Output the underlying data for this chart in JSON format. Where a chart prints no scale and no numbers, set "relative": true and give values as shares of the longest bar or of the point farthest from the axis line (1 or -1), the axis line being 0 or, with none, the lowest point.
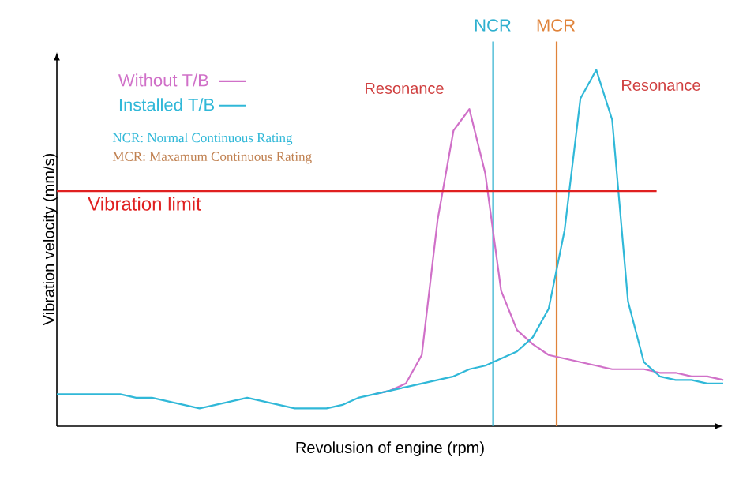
{
  "chart_data": {
    "type": "line",
    "relative": true,
    "xlabel": "Revolusion of engine (rpm)",
    "ylabel": "Vibration velocity (mm/s)",
    "categories": [
      null,
      null,
      null,
      null,
      null,
      null,
      null,
      null,
      null,
      null,
      null,
      null,
      null,
      null,
      null,
      null,
      null,
      null,
      null,
      null,
      null,
      null,
      null,
      null,
      null,
      null,
      null,
      null,
      null,
      null,
      null,
      null,
      null,
      null,
      null,
      null,
      null,
      null,
      null,
      null,
      null,
      null,
      null
    ],
    "series": [
      {
        "name": "Without T/B",
        "color": "#d070c8",
        "values": [
          null,
          null,
          null,
          null,
          null,
          null,
          null,
          null,
          null,
          null,
          null,
          null,
          null,
          null,
          null,
          null,
          null,
          null,
          null,
          null,
          0.09,
          0.1,
          0.12,
          0.2,
          0.58,
          0.83,
          0.89,
          0.71,
          0.38,
          0.27,
          0.23,
          0.2,
          0.19,
          0.18,
          0.17,
          0.16,
          0.16,
          0.16,
          0.15,
          0.15,
          0.14,
          0.14,
          0.13
        ]
      },
      {
        "name": "Installed T/B",
        "color": "#30b8d8",
        "values": [
          0.09,
          0.09,
          0.09,
          0.09,
          0.09,
          0.08,
          0.08,
          0.07,
          0.06,
          0.05,
          0.06,
          0.07,
          0.08,
          0.07,
          0.06,
          0.05,
          0.05,
          0.05,
          0.06,
          0.08,
          0.09,
          0.1,
          0.11,
          0.12,
          0.13,
          0.14,
          0.16,
          0.17,
          0.19,
          0.21,
          0.25,
          0.33,
          0.55,
          0.92,
          1.0,
          0.86,
          0.35,
          0.18,
          0.14,
          0.13,
          0.13,
          0.12,
          0.12
        ]
      }
    ],
    "ref_lines": [
      {
        "axis": "y",
        "value": 0.66,
        "label": "Vibration limit",
        "color": "#e02020"
      }
    ],
    "annotations": [
      "Resonance",
      "Resonance",
      "NCR: Normal Continuous Rating",
      "MCR: Maxamum Continuous Rating",
      "NCR",
      "MCR"
    ],
    "legend": "top left",
    "marker": "none",
    "line_style": "solid"
  }
}
